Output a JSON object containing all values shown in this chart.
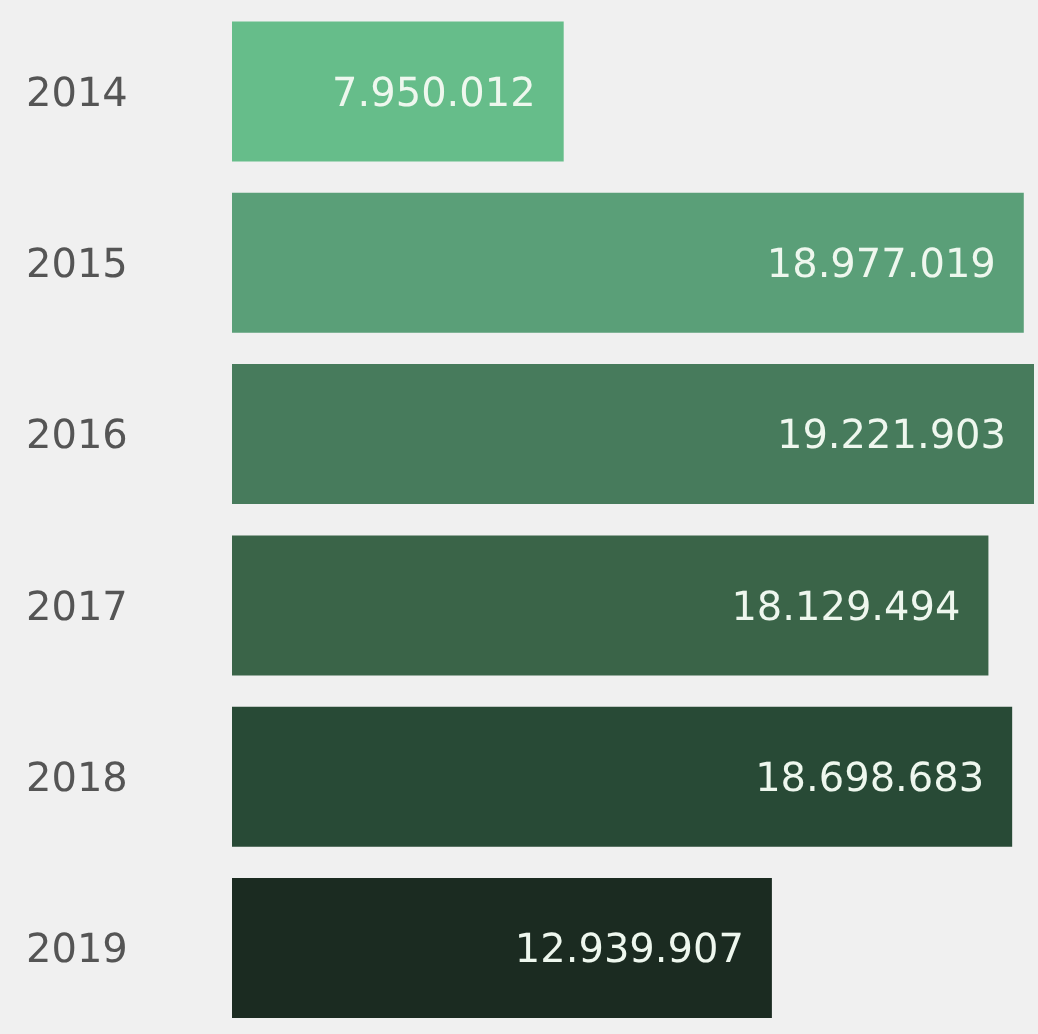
{
  "chart_data": {
    "type": "bar",
    "orientation": "horizontal",
    "categories": [
      "2014",
      "2015",
      "2016",
      "2017",
      "2018",
      "2019"
    ],
    "values": [
      7950012,
      18977019,
      19221903,
      18129494,
      18698683,
      12939907
    ],
    "value_labels": [
      "7.950.012",
      "18.977.019",
      "19.221.903",
      "18.129.494",
      "18.698.683",
      "12.939.907"
    ],
    "colors": [
      "#66bd8a",
      "#5a9f78",
      "#477b5c",
      "#3a6448",
      "#284a36",
      "#1b2b21"
    ],
    "grid": false,
    "legend": false
  }
}
